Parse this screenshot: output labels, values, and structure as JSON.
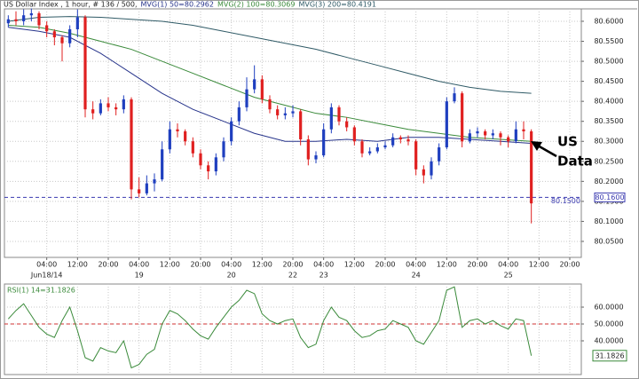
{
  "chart_data": {
    "type": "candlestick",
    "title": "US Dollar Index , 1 hour, # 136 / 500,",
    "up_color": "#1f3fbf",
    "down_color": "#e02020",
    "xlim": [
      -0.5,
      74.5
    ],
    "ylim": [
      80.01,
      80.631
    ],
    "grid": true,
    "yticks": [
      {
        "value": 80.05,
        "label": "80.0500"
      },
      {
        "value": 80.1,
        "label": "80.1000"
      },
      {
        "value": 80.15,
        "label": "80.1500"
      },
      {
        "value": 80.2,
        "label": "80.2000"
      },
      {
        "value": 80.25,
        "label": "80.2500"
      },
      {
        "value": 80.3,
        "label": "80.3000"
      },
      {
        "value": 80.35,
        "label": "80.3500"
      },
      {
        "value": 80.4,
        "label": "80.4000"
      },
      {
        "value": 80.45,
        "label": "80.4500"
      },
      {
        "value": 80.5,
        "label": "80.5000"
      },
      {
        "value": 80.55,
        "label": "80.5500"
      },
      {
        "value": 80.6,
        "label": "80.6000"
      }
    ],
    "xticks": [
      {
        "value": 5,
        "label": "04:00"
      },
      {
        "value": 9,
        "label": "12:00"
      },
      {
        "value": 13,
        "label": "20:00"
      },
      {
        "value": 17,
        "label": "04:00"
      },
      {
        "value": 21,
        "label": "12:00"
      },
      {
        "value": 25,
        "label": "20:00"
      },
      {
        "value": 29,
        "label": "04:00"
      },
      {
        "value": 33,
        "label": "12:00"
      },
      {
        "value": 37,
        "label": "20:00"
      },
      {
        "value": 41,
        "label": "04:00"
      },
      {
        "value": 45,
        "label": "12:00"
      },
      {
        "value": 49,
        "label": "20:00"
      },
      {
        "value": 53,
        "label": "04:00"
      },
      {
        "value": 57,
        "label": "12:00"
      },
      {
        "value": 61,
        "label": "20:00"
      },
      {
        "value": 65,
        "label": "04:00"
      },
      {
        "value": 69,
        "label": "12:00"
      },
      {
        "value": 73,
        "label": "20:00"
      }
    ],
    "date_labels": [
      {
        "value": 5,
        "label": "Jun18/14"
      },
      {
        "value": 17,
        "label": "19"
      },
      {
        "value": 29,
        "label": "20"
      },
      {
        "value": 37,
        "label": "22"
      },
      {
        "value": 41,
        "label": "23"
      },
      {
        "value": 53,
        "label": "24"
      },
      {
        "value": 65,
        "label": "25"
      }
    ],
    "open": [
      80.595,
      80.605,
      80.6,
      80.615,
      80.62,
      80.59,
      80.575,
      80.56,
      80.545,
      80.58,
      80.61,
      80.38,
      80.37,
      80.395,
      80.385,
      80.38,
      80.405,
      80.18,
      80.17,
      80.195,
      80.205,
      80.28,
      80.33,
      80.325,
      80.3,
      80.27,
      80.24,
      80.225,
      80.26,
      80.3,
      80.35,
      80.385,
      80.43,
      80.455,
      80.405,
      80.38,
      80.365,
      80.37,
      80.375,
      80.305,
      80.255,
      80.265,
      80.33,
      80.385,
      80.35,
      80.335,
      80.3,
      80.27,
      80.275,
      80.285,
      80.29,
      80.31,
      80.305,
      80.3,
      80.23,
      80.215,
      80.25,
      80.285,
      80.4,
      80.42,
      80.3,
      80.32,
      80.325,
      80.315,
      80.32,
      80.31,
      80.3,
      80.33,
      80.325
    ],
    "high": [
      80.615,
      80.625,
      80.63,
      80.632,
      80.625,
      80.6,
      80.58,
      80.565,
      80.59,
      80.63,
      80.615,
      80.4,
      80.405,
      80.41,
      80.395,
      80.415,
      80.41,
      80.21,
      80.215,
      80.22,
      80.3,
      80.35,
      80.345,
      80.33,
      80.31,
      80.28,
      80.25,
      80.27,
      80.31,
      80.36,
      80.4,
      80.46,
      80.49,
      80.465,
      80.415,
      80.39,
      80.385,
      80.39,
      80.38,
      80.315,
      80.275,
      80.345,
      80.395,
      80.39,
      80.36,
      80.34,
      80.305,
      80.285,
      80.295,
      80.3,
      80.32,
      80.315,
      80.315,
      80.305,
      80.24,
      80.26,
      80.295,
      80.41,
      80.435,
      80.425,
      80.33,
      80.335,
      80.33,
      80.33,
      80.325,
      80.315,
      80.35,
      80.35,
      80.33
    ],
    "low": [
      80.585,
      80.59,
      80.59,
      80.6,
      80.58,
      80.56,
      80.54,
      80.5,
      80.535,
      80.56,
      80.36,
      80.355,
      80.365,
      80.375,
      80.365,
      80.37,
      80.155,
      80.16,
      80.165,
      80.175,
      80.2,
      80.27,
      80.31,
      80.29,
      80.26,
      80.23,
      80.205,
      80.215,
      80.25,
      80.29,
      80.34,
      80.375,
      80.42,
      80.395,
      80.37,
      80.355,
      80.355,
      80.36,
      80.29,
      80.24,
      80.245,
      80.26,
      80.32,
      80.34,
      80.325,
      80.29,
      80.26,
      80.265,
      80.27,
      80.28,
      80.285,
      80.295,
      80.29,
      80.215,
      80.195,
      80.205,
      80.24,
      80.28,
      80.395,
      80.285,
      80.295,
      80.31,
      80.305,
      80.305,
      80.29,
      80.285,
      80.295,
      80.305,
      80.095
    ],
    "close": [
      80.605,
      80.6,
      80.615,
      80.62,
      80.59,
      80.575,
      80.56,
      80.545,
      80.58,
      80.61,
      80.38,
      80.37,
      80.395,
      80.385,
      80.38,
      80.405,
      80.18,
      80.17,
      80.195,
      80.205,
      80.28,
      80.33,
      80.325,
      80.3,
      80.27,
      80.24,
      80.225,
      80.26,
      80.3,
      80.35,
      80.385,
      80.43,
      80.455,
      80.405,
      80.38,
      80.365,
      80.37,
      80.375,
      80.305,
      80.255,
      80.265,
      80.33,
      80.385,
      80.35,
      80.335,
      80.3,
      80.27,
      80.275,
      80.285,
      80.29,
      80.31,
      80.305,
      80.3,
      80.23,
      80.215,
      80.25,
      80.285,
      80.4,
      80.42,
      80.3,
      80.32,
      80.325,
      80.315,
      80.32,
      80.31,
      80.3,
      80.33,
      80.325,
      80.145
    ],
    "series": [
      {
        "name": "MVG(1) 50=80.2962",
        "color": "#27348b",
        "x": [
          0,
          4,
          8,
          12,
          16,
          20,
          24,
          28,
          32,
          36,
          40,
          44,
          48,
          52,
          56,
          60,
          64,
          68
        ],
        "values": [
          80.585,
          80.575,
          80.56,
          80.52,
          80.47,
          80.42,
          80.38,
          80.35,
          80.32,
          80.3,
          80.3,
          80.305,
          80.3,
          80.31,
          80.31,
          80.305,
          80.3,
          80.295
        ]
      },
      {
        "name": "MVG(2) 100=80.3069",
        "color": "#3a8a3a",
        "x": [
          0,
          4,
          8,
          12,
          16,
          20,
          24,
          28,
          32,
          36,
          40,
          44,
          48,
          52,
          56,
          60,
          64,
          68
        ],
        "values": [
          80.59,
          80.585,
          80.57,
          80.55,
          80.53,
          80.5,
          80.47,
          80.44,
          80.41,
          80.39,
          80.37,
          80.36,
          80.345,
          80.33,
          80.32,
          80.31,
          80.305,
          80.3
        ]
      },
      {
        "name": "MVG(3) 200=80.4191",
        "color": "#2f5a66",
        "x": [
          0,
          4,
          8,
          12,
          16,
          20,
          24,
          28,
          32,
          36,
          40,
          44,
          48,
          52,
          56,
          60,
          64,
          68
        ],
        "values": [
          80.6,
          80.61,
          80.612,
          80.61,
          80.605,
          80.6,
          80.59,
          80.575,
          80.56,
          80.545,
          80.53,
          80.51,
          80.49,
          80.47,
          80.45,
          80.435,
          80.425,
          80.42
        ]
      }
    ],
    "level": {
      "value": 80.16,
      "label": "80.1600",
      "color": "#3a3ab0"
    },
    "level_tag": "80.1500",
    "annotation": [
      "US",
      "Data"
    ],
    "rsi": {
      "title": "RSI(1) 14=31.1826",
      "color": "#3a8a3a",
      "ylim": [
        20,
        73.7
      ],
      "yticks": [
        {
          "value": 40,
          "label": "40.0000"
        },
        {
          "value": 50,
          "label": "50.0000"
        },
        {
          "value": 60,
          "label": "60.0000"
        }
      ],
      "reference": 50,
      "last_label": "31.1826",
      "values": [
        53,
        58,
        62,
        55,
        48,
        44,
        42,
        52,
        60,
        46,
        30,
        28,
        36,
        34,
        33,
        40,
        24,
        26,
        32,
        35,
        50,
        58,
        56,
        52,
        47,
        43,
        41,
        48,
        54,
        60,
        64,
        70,
        68,
        56,
        52,
        50,
        52,
        53,
        42,
        36,
        38,
        52,
        60,
        54,
        52,
        46,
        42,
        43,
        46,
        47,
        52,
        50,
        48,
        40,
        38,
        45,
        52,
        70,
        72,
        48,
        52,
        53,
        50,
        52,
        49,
        47,
        53,
        52,
        31.1826
      ]
    }
  }
}
